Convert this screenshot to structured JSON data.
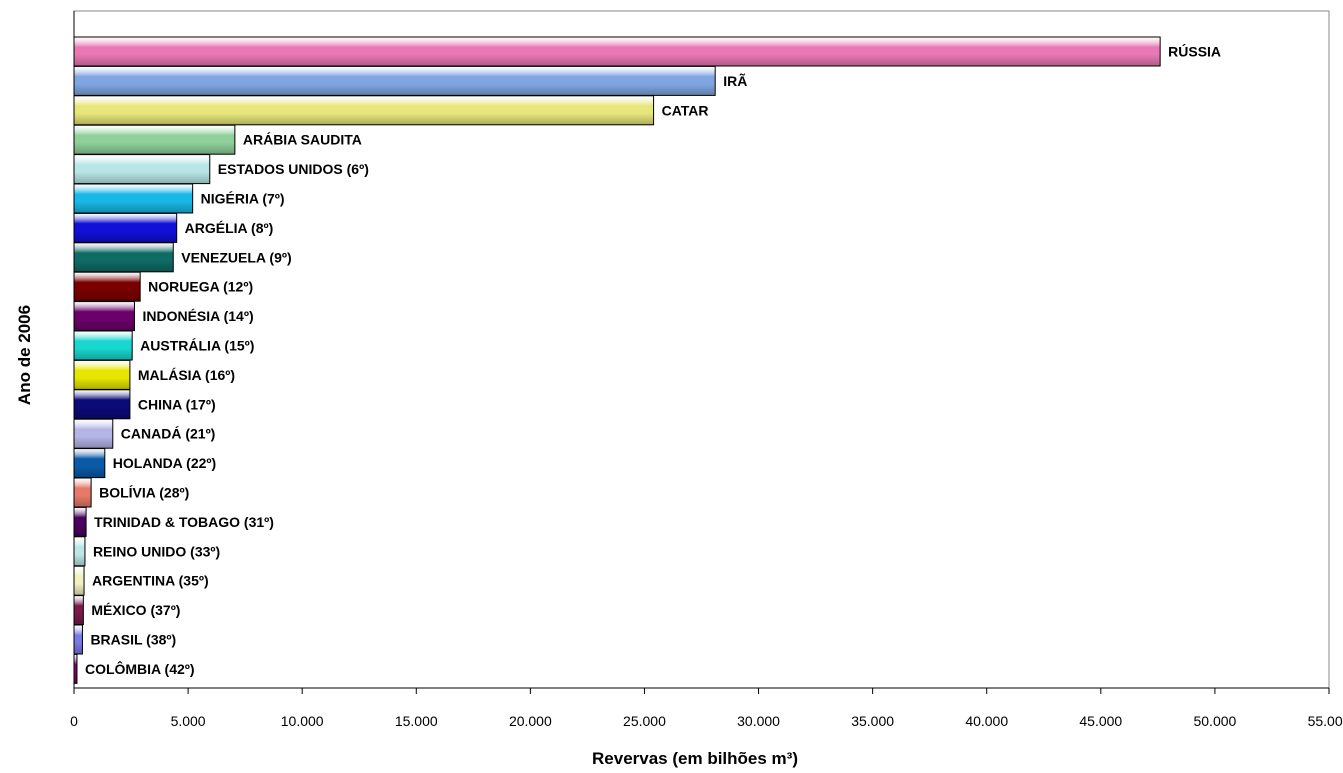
{
  "chart_data": {
    "type": "bar",
    "orientation": "horizontal",
    "xlabel": "Revervas (em bilhões m³)",
    "ylabel": "Ano de 2006",
    "xlim": [
      0,
      55000
    ],
    "x_ticks": [
      0,
      5000,
      10000,
      15000,
      20000,
      25000,
      30000,
      35000,
      40000,
      45000,
      50000,
      55000
    ],
    "x_tick_labels": [
      "0",
      "5.000",
      "10.000",
      "15.000",
      "20.000",
      "25.000",
      "30.000",
      "35.000",
      "40.000",
      "45.000",
      "50.000",
      "55.000"
    ],
    "grid": false,
    "legend": "none",
    "bars": [
      {
        "label": "RÚSSIA",
        "value": 47600,
        "color": "#e879b4"
      },
      {
        "label": "IRÃ",
        "value": 28100,
        "color": "#7fa6e0"
      },
      {
        "label": "CATAR",
        "value": 25400,
        "color": "#e6e67a"
      },
      {
        "label": "ARÁBIA SAUDITA",
        "value": 7050,
        "color": "#8fd09a"
      },
      {
        "label": "ESTADOS UNIDOS (6º)",
        "value": 5950,
        "color": "#b8e6e6"
      },
      {
        "label": "NIGÉRIA  (7º)",
        "value": 5200,
        "color": "#19b8e6"
      },
      {
        "label": "ARGÉLIA (8º)",
        "value": 4500,
        "color": "#1010d8"
      },
      {
        "label": "VENEZUELA (9º)",
        "value": 4350,
        "color": "#0f6b66"
      },
      {
        "label": "NORUEGA (12º)",
        "value": 2900,
        "color": "#7a0000"
      },
      {
        "label": "INDONÉSIA (14º)",
        "value": 2650,
        "color": "#6a006a"
      },
      {
        "label": "AUSTRÁLIA (15º)",
        "value": 2550,
        "color": "#19d6cf"
      },
      {
        "label": "MALÁSIA (16º)",
        "value": 2450,
        "color": "#e6e600"
      },
      {
        "label": "CHINA (17º)",
        "value": 2450,
        "color": "#0a0a78"
      },
      {
        "label": "CANADÁ (21º)",
        "value": 1700,
        "color": "#b4b4e6"
      },
      {
        "label": "HOLANDA (22º)",
        "value": 1350,
        "color": "#0a5aa8"
      },
      {
        "label": "BOLÍVIA (28º)",
        "value": 750,
        "color": "#e67a6a"
      },
      {
        "label": "TRINIDAD & TOBAGO (31º)",
        "value": 530,
        "color": "#4a0060"
      },
      {
        "label": "REINO UNIDO (33º)",
        "value": 480,
        "color": "#bfe6e6"
      },
      {
        "label": "ARGENTINA (35º)",
        "value": 440,
        "color": "#f0f0c0"
      },
      {
        "label": "MÉXICO (37º)",
        "value": 410,
        "color": "#7a1a4a"
      },
      {
        "label": "BRASIL  (38º)",
        "value": 370,
        "color": "#7a7ae6"
      },
      {
        "label": "COLÔMBIA (42º)",
        "value": 130,
        "color": "#8a006a"
      }
    ]
  }
}
